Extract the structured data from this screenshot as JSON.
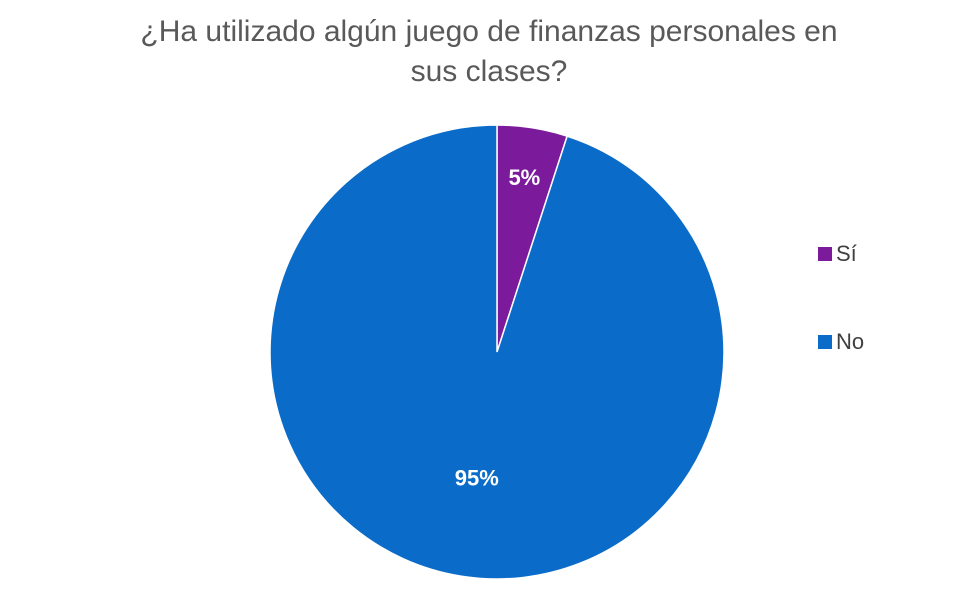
{
  "chart_data": {
    "type": "pie",
    "title_lines": [
      "¿Ha utilizado algún juego de finanzas personales en",
      "sus clases?"
    ],
    "slices": [
      {
        "label": "Sí",
        "value": 5,
        "data_label": "5%",
        "color": "#7B1A9A"
      },
      {
        "label": "No",
        "value": 95,
        "data_label": "95%",
        "color": "#0A6CC8"
      }
    ],
    "legend_position": "right",
    "start_angle": "12 o'clock",
    "direction": "clockwise",
    "label_color": "#ffffff"
  }
}
